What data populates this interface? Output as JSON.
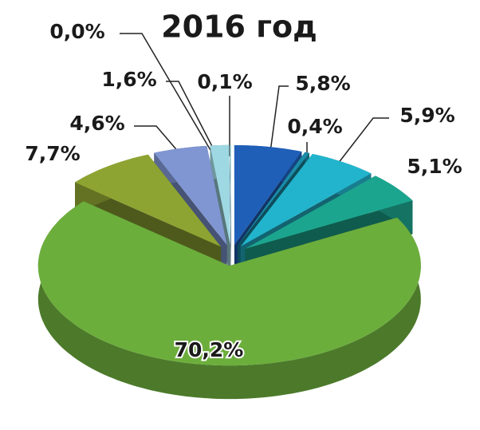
{
  "chart_data": {
    "type": "pie",
    "title": "2016 год",
    "categories": [
      null,
      null,
      null,
      null,
      null,
      null,
      null,
      null,
      null,
      null
    ],
    "values": [
      5.8,
      0.4,
      5.9,
      5.1,
      70.2,
      7.7,
      4.6,
      1.6,
      0.0,
      0.1
    ],
    "value_labels": [
      "5,8%",
      "0,4%",
      "5,9%",
      "5,1%",
      "70,2%",
      "7,7%",
      "4,6%",
      "1,6%",
      "0,0%",
      "0,1%"
    ],
    "colors": [
      "#1f5fb8",
      "#1a8ca8",
      "#22b4cc",
      "#1ca58e",
      "#6cae3c",
      "#8ea432",
      "#8096d2",
      "#9ed8e2",
      "#86b4d4",
      "#aee2ea"
    ]
  }
}
